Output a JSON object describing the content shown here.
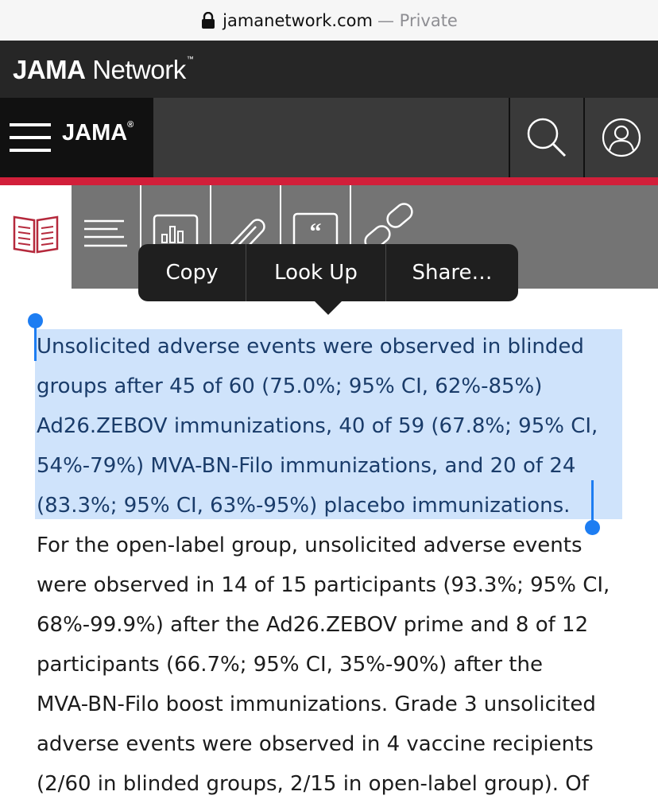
{
  "browser": {
    "domain": "jamanetwork.com",
    "private_label": "— Private"
  },
  "network_header": {
    "logo_bold": "JAMA",
    "logo_regular": "Network",
    "logo_tm": "™"
  },
  "journal_header": {
    "title": "JAMA",
    "registered_mark": "®"
  },
  "toolbar": {
    "icons": [
      "article-book-icon",
      "outline-icon",
      "figures-icon",
      "attachment-icon",
      "cite-icon",
      "link-icon"
    ],
    "quote_glyph": "“"
  },
  "context_menu": {
    "copy": "Copy",
    "look_up": "Look Up",
    "share": "Share…"
  },
  "article": {
    "selected_lines": [
      "Unsolicited adverse events were observed in blinded",
      "groups after 45 of 60 (75.0%; 95% CI, 62%-85%)",
      "Ad26.ZEBOV immunizations, 40 of 59 (67.8%; 95% CI,",
      "54%-79%) MVA-BN-Filo immunizations, and 20 of 24",
      "(83.3%; 95% CI, 63%-95%) placebo immunizations."
    ],
    "lines": [
      "For the open-label group, unsolicited adverse events",
      "were observed in 14 of 15 participants (93.3%; 95% CI,",
      "68%-99.9%) after the Ad26.ZEBOV prime and 8 of 12",
      "participants (66.7%; 95% CI, 35%-90%) after the",
      "MVA-BN-Filo boost immunizations. Grade 3 unsolicited",
      "adverse events were observed in 4 vaccine recipients",
      "(2/60 in blinded groups, 2/15 in open-label group). Of"
    ]
  },
  "colors": {
    "accent_red": "#d21f3a",
    "selection_blue": "#1d7df2",
    "selection_fill": "#cfe3fb"
  }
}
